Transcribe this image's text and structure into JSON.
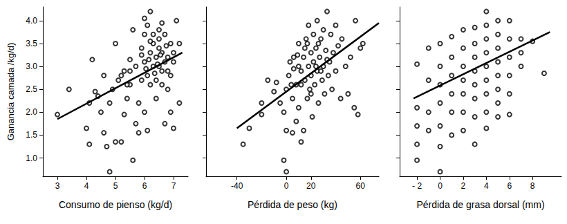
{
  "chart_data": [
    {
      "type": "scatter",
      "xlabel": "Consumo de pienso (kg/d)",
      "ylabel": "Ganancia camada /kg/d)",
      "xlim": [
        2.5,
        7.5
      ],
      "xticks": [
        3,
        4,
        5,
        6,
        7
      ],
      "ylim": [
        0.6,
        4.3
      ],
      "yticks": [
        {
          "value": 1,
          "label": "1.0"
        },
        {
          "value": 1.5,
          "label": "1.5"
        },
        {
          "value": 2,
          "label": "2.0"
        },
        {
          "value": 2.5,
          "label": "2.5"
        },
        {
          "value": 3,
          "label": "3.0"
        },
        {
          "value": 3.5,
          "label": "3.5"
        },
        {
          "value": 4,
          "label": "4.0"
        }
      ],
      "grid": false,
      "series": [
        {
          "type": "scatter",
          "marker": "circle",
          "color": "#000000",
          "x": [
            3.0,
            3.4,
            4.0,
            4.1,
            4.1,
            4.2,
            4.3,
            4.4,
            4.5,
            4.6,
            4.6,
            4.7,
            4.8,
            4.8,
            4.9,
            5.0,
            5.0,
            5.1,
            5.2,
            5.3,
            5.3,
            5.4,
            5.5,
            5.5,
            5.6,
            5.6,
            5.7,
            5.8,
            5.8,
            5.9,
            6.0,
            6.0,
            6.1,
            6.2,
            6.3,
            6.4,
            6.5,
            6.5,
            6.6,
            6.6,
            6.7,
            6.8,
            6.9,
            7.0,
            7.0,
            7.1,
            7.2,
            7.2,
            6.0,
            6.1,
            6.2,
            6.3,
            6.3,
            6.4,
            6.4,
            6.5,
            6.6,
            6.7,
            6.7,
            6.8,
            6.8,
            6.9,
            5.9,
            5.9,
            6.0,
            6.1,
            6.2,
            6.5,
            6.6,
            7.0,
            6.9,
            5.5,
            5.7,
            5.4,
            5.2,
            6.2,
            6.45,
            6.55,
            6.35,
            6.75,
            6.15,
            6.05
          ],
          "values": [
            1.95,
            2.5,
            1.65,
            1.3,
            2.2,
            3.15,
            2.45,
            2.35,
            2.0,
            2.8,
            1.55,
            1.25,
            0.7,
            2.2,
            2.5,
            3.5,
            1.35,
            2.7,
            1.35,
            1.95,
            2.9,
            2.3,
            3.15,
            2.6,
            0.95,
            3.8,
            1.75,
            1.55,
            2.2,
            3.25,
            4.05,
            2.0,
            1.6,
            4.2,
            3.7,
            2.3,
            3.0,
            3.4,
            2.9,
            3.95,
            1.75,
            2.5,
            2.0,
            1.65,
            3.1,
            4.0,
            2.2,
            3.5,
            3.1,
            2.8,
            3.3,
            3.0,
            3.5,
            2.7,
            3.2,
            3.6,
            3.3,
            3.1,
            3.7,
            3.2,
            2.9,
            3.5,
            2.7,
            3.4,
            3.7,
            3.9,
            2.6,
            3.8,
            2.6,
            3.3,
            2.8,
            2.9,
            3.0,
            2.6,
            2.8,
            3.55,
            3.05,
            3.25,
            2.85,
            3.45,
            3.15,
            2.95
          ]
        },
        {
          "type": "line",
          "line_style": "solid",
          "color": "#000000",
          "x": [
            3.0,
            7.3
          ],
          "values": [
            1.85,
            3.3
          ]
        }
      ]
    },
    {
      "type": "scatter",
      "xlabel": "Pérdida de peso (kg)",
      "xlim": [
        -65,
        75
      ],
      "xticks": [
        -40,
        0,
        20,
        60
      ],
      "ylim": [
        0.6,
        4.3
      ],
      "yticks": [
        {
          "value": 1,
          "label": "1.0"
        },
        {
          "value": 1.5,
          "label": "1.5"
        },
        {
          "value": 2,
          "label": "2.0"
        },
        {
          "value": 2.5,
          "label": "2.5"
        },
        {
          "value": 3,
          "label": "3.0"
        },
        {
          "value": 3.5,
          "label": "3.5"
        },
        {
          "value": 4,
          "label": "4.0"
        }
      ],
      "grid": false,
      "tick_labels": "x",
      "series": [
        {
          "type": "scatter",
          "marker": "circle",
          "color": "#000000",
          "x": [
            -35,
            -30,
            -20,
            -20,
            -15,
            -10,
            -8,
            -5,
            -2,
            -2,
            0,
            0,
            0,
            2,
            3,
            5,
            5,
            6,
            8,
            8,
            9,
            10,
            10,
            12,
            12,
            14,
            14,
            15,
            16,
            17,
            18,
            18,
            19,
            20,
            20,
            21,
            22,
            22,
            23,
            24,
            25,
            25,
            26,
            27,
            28,
            29,
            30,
            30,
            31,
            32,
            33,
            34,
            35,
            36,
            37,
            38,
            40,
            40,
            42,
            44,
            45,
            48,
            50,
            52,
            55,
            56,
            58,
            60,
            62,
            10,
            15,
            20,
            24,
            28,
            12,
            6,
            17,
            26,
            33,
            4
          ],
          "values": [
            1.3,
            1.65,
            1.95,
            2.2,
            2.7,
            2.45,
            2.65,
            2.2,
            2.0,
            0.95,
            0.7,
            1.6,
            2.5,
            2.8,
            3.1,
            1.55,
            2.3,
            2.95,
            1.8,
            2.6,
            3.25,
            3.5,
            2.1,
            1.35,
            2.9,
            3.2,
            1.6,
            2.7,
            3.6,
            2.3,
            3.0,
            3.9,
            2.5,
            3.3,
            2.8,
            1.9,
            3.1,
            3.7,
            2.6,
            3.4,
            2.9,
            4.0,
            2.2,
            3.2,
            3.6,
            2.7,
            3.0,
            3.8,
            2.4,
            3.35,
            4.2,
            2.8,
            3.1,
            3.7,
            2.5,
            3.3,
            2.9,
            3.9,
            3.45,
            2.3,
            3.6,
            3.0,
            2.4,
            3.2,
            2.1,
            4.0,
            1.95,
            3.4,
            3.5,
            3.0,
            3.4,
            2.4,
            3.0,
            2.9,
            2.6,
            3.2,
            3.5,
            3.5,
            3.15,
            2.6
          ]
        },
        {
          "type": "line",
          "line_style": "solid",
          "color": "#000000",
          "x": [
            -40,
            75
          ],
          "values": [
            1.65,
            3.95
          ]
        }
      ]
    },
    {
      "type": "scatter",
      "xlabel": "Pérdida de grasa dorsal (mm)",
      "xlim": [
        -3.5,
        10.5
      ],
      "xticks": [
        {
          "value": -2,
          "label": "- 2"
        },
        0,
        2,
        4,
        6,
        8
      ],
      "ylim": [
        0.6,
        4.3
      ],
      "yticks": [
        {
          "value": 1,
          "label": "1.0"
        },
        {
          "value": 1.5,
          "label": "1.5"
        },
        {
          "value": 2,
          "label": "2.0"
        },
        {
          "value": 2.5,
          "label": "2.5"
        },
        {
          "value": 3,
          "label": "3.0"
        },
        {
          "value": 3.5,
          "label": "3.5"
        },
        {
          "value": 4,
          "label": "4.0"
        }
      ],
      "grid": false,
      "tick_labels": "x",
      "series": [
        {
          "type": "scatter",
          "marker": "circle",
          "color": "#000000",
          "x": [
            -2,
            -2,
            -2,
            -2,
            -2,
            -1,
            -1,
            -1,
            -1,
            0,
            0,
            0,
            0,
            0,
            0,
            0,
            1,
            1,
            1,
            1,
            1,
            1,
            2,
            2,
            2,
            2,
            2,
            2,
            2,
            3,
            3,
            3,
            3,
            3,
            3,
            3,
            3,
            4,
            4,
            4,
            4,
            4,
            4,
            4,
            4,
            4,
            5,
            5,
            5,
            5,
            5,
            5,
            5,
            5,
            6,
            6,
            6,
            6,
            6,
            6,
            7,
            7,
            7,
            8,
            9
          ],
          "values": [
            3.05,
            2.1,
            1.7,
            1.3,
            0.95,
            3.4,
            2.7,
            2.0,
            1.6,
            3.5,
            3.0,
            2.6,
            2.2,
            1.7,
            1.25,
            0.7,
            3.65,
            3.2,
            2.8,
            2.4,
            2.0,
            1.5,
            3.8,
            3.4,
            3.0,
            2.7,
            2.4,
            2.0,
            1.6,
            3.85,
            3.5,
            3.2,
            2.9,
            2.6,
            2.3,
            1.9,
            1.3,
            4.2,
            3.9,
            3.6,
            3.3,
            3.0,
            2.7,
            2.4,
            2.0,
            1.65,
            4.0,
            3.7,
            3.4,
            3.1,
            2.8,
            2.5,
            2.2,
            1.9,
            4.0,
            3.6,
            3.2,
            2.8,
            2.4,
            1.95,
            3.6,
            3.3,
            3.0,
            3.55,
            2.85
          ]
        },
        {
          "type": "line",
          "line_style": "solid",
          "color": "#000000",
          "x": [
            -2.3,
            9.5
          ],
          "values": [
            2.3,
            3.75
          ]
        }
      ]
    }
  ]
}
